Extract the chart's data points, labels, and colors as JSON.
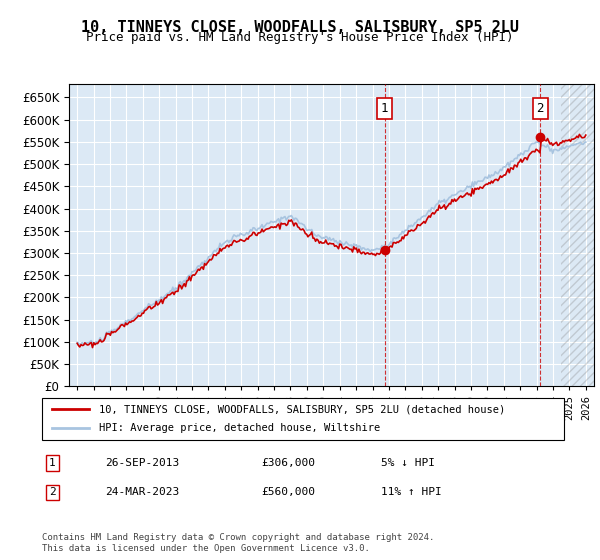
{
  "title": "10, TINNEYS CLOSE, WOODFALLS, SALISBURY, SP5 2LU",
  "subtitle": "Price paid vs. HM Land Registry's House Price Index (HPI)",
  "legend_line1": "10, TINNEYS CLOSE, WOODFALLS, SALISBURY, SP5 2LU (detached house)",
  "legend_line2": "HPI: Average price, detached house, Wiltshire",
  "annotation1_label": "1",
  "annotation1_date": "26-SEP-2013",
  "annotation1_price": "£306,000",
  "annotation1_change": "5% ↓ HPI",
  "annotation2_label": "2",
  "annotation2_date": "24-MAR-2023",
  "annotation2_price": "£560,000",
  "annotation2_change": "11% ↑ HPI",
  "footer": "Contains HM Land Registry data © Crown copyright and database right 2024.\nThis data is licensed under the Open Government Licence v3.0.",
  "sale1_year": 2013.74,
  "sale1_price": 306000,
  "sale2_year": 2023.23,
  "sale2_price": 560000,
  "hpi_color": "#a8c4e0",
  "price_color": "#cc0000",
  "sale_marker_color": "#cc0000",
  "dashed_line_color": "#cc0000",
  "background_color": "#dce9f5",
  "ylim_min": 0,
  "ylim_max": 680000,
  "yticks": [
    0,
    50000,
    100000,
    150000,
    200000,
    250000,
    300000,
    350000,
    400000,
    450000,
    500000,
    550000,
    600000,
    650000
  ],
  "xlim_min": 1994.5,
  "xlim_max": 2026.5
}
